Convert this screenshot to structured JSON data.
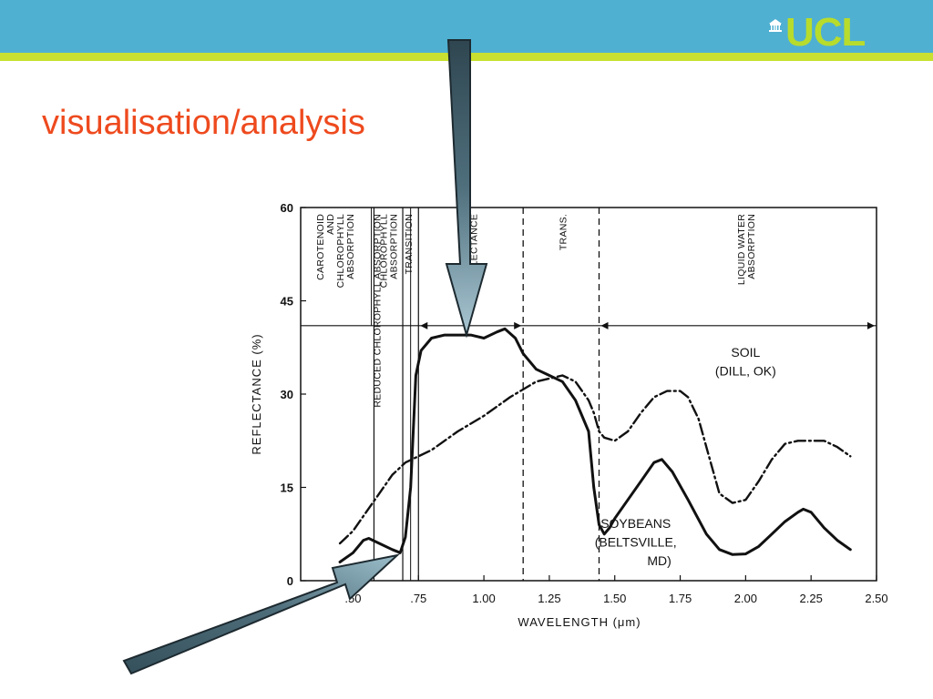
{
  "header": {
    "logo_text": "UCL",
    "colors": {
      "bar": "#4fb0d2",
      "accent_line": "#c9e030",
      "logo": "#b8dc2c",
      "title": "#ee4a1e"
    }
  },
  "slide": {
    "title": "visualisation/analysis"
  },
  "chart_data": {
    "type": "line",
    "xlabel": "WAVELENGTH (μm)",
    "ylabel": "REFLECTANCE (%)",
    "xlim": [
      0.3,
      2.5
    ],
    "ylim": [
      0,
      60
    ],
    "x_ticks": [
      ".50",
      ".75",
      "1.00",
      "1.25",
      "1.50",
      "1.75",
      "2.00",
      "2.25",
      "2.50"
    ],
    "x_tick_values": [
      0.5,
      0.75,
      1.0,
      1.25,
      1.5,
      1.75,
      2.0,
      2.25,
      2.5
    ],
    "y_ticks": [
      "0",
      "15",
      "30",
      "45",
      "60"
    ],
    "y_tick_values": [
      0,
      15,
      30,
      45,
      60
    ],
    "grid": false,
    "regions": [
      {
        "label": "CAROTENOID AND CHLOROPHYLL ABSORPTION",
        "from": 0.3,
        "to": 0.58
      },
      {
        "label": "REDUCED CHLOROPHYLL ABSORPTION",
        "from": 0.58,
        "to": 0.58
      },
      {
        "label": "CHLOROPHYLL ABSORPTION",
        "from": 0.58,
        "to": 0.69
      },
      {
        "label": "TRANSITION",
        "from": 0.69,
        "to": 0.75
      },
      {
        "label": "REFLECTANCE",
        "from": 0.75,
        "to": 1.15
      },
      {
        "label": "TRANS.",
        "from": 1.15,
        "to": 1.44
      },
      {
        "label": "LIQUID WATER ABSORPTION",
        "from": 1.44,
        "to": 2.5
      }
    ],
    "series": [
      {
        "name": "SOYBEANS (BELTSVILLE, MD)",
        "style": "solid",
        "x": [
          0.45,
          0.5,
          0.54,
          0.56,
          0.6,
          0.65,
          0.68,
          0.7,
          0.72,
          0.74,
          0.76,
          0.8,
          0.85,
          0.9,
          0.95,
          1.0,
          1.05,
          1.08,
          1.12,
          1.15,
          1.2,
          1.25,
          1.3,
          1.35,
          1.4,
          1.42,
          1.44,
          1.46,
          1.48,
          1.5,
          1.55,
          1.6,
          1.65,
          1.68,
          1.72,
          1.78,
          1.85,
          1.9,
          1.95,
          2.0,
          2.05,
          2.1,
          2.15,
          2.2,
          2.22,
          2.25,
          2.3,
          2.35,
          2.4
        ],
        "y": [
          3,
          4.5,
          6.5,
          6.8,
          6,
          5,
          4.5,
          7,
          15,
          33,
          37,
          39,
          39.5,
          39.5,
          39.5,
          39,
          40,
          40.5,
          39,
          36.5,
          34,
          33,
          32,
          29,
          24,
          15,
          9,
          7.5,
          8.5,
          10,
          13,
          16,
          19,
          19.5,
          17.5,
          13,
          7.5,
          5,
          4.2,
          4.3,
          5.5,
          7.5,
          9.5,
          11,
          11.5,
          11,
          8.5,
          6.5,
          5
        ]
      },
      {
        "name": "SOIL (DILL, OK)",
        "style": "dashdot",
        "x": [
          0.45,
          0.5,
          0.55,
          0.6,
          0.65,
          0.7,
          0.75,
          0.8,
          0.9,
          1.0,
          1.1,
          1.2,
          1.3,
          1.35,
          1.4,
          1.42,
          1.44,
          1.46,
          1.5,
          1.55,
          1.6,
          1.65,
          1.7,
          1.75,
          1.78,
          1.82,
          1.86,
          1.9,
          1.95,
          2.0,
          2.05,
          2.1,
          2.15,
          2.2,
          2.25,
          2.3,
          2.35,
          2.4
        ],
        "y": [
          6,
          8,
          11,
          14,
          17,
          19,
          20,
          21,
          24,
          26.5,
          29.5,
          32,
          33,
          32,
          29,
          27,
          24,
          23,
          22.5,
          24,
          27,
          29.5,
          30.5,
          30.5,
          29.5,
          26,
          20,
          14,
          12.5,
          13,
          16,
          19.5,
          22,
          22.5,
          22.5,
          22.5,
          21.5,
          20
        ]
      }
    ],
    "annotations": [
      {
        "text": "SOIL",
        "x": 2.0,
        "y": 36
      },
      {
        "text": "(DILL, OK)",
        "x": 2.0,
        "y": 33
      },
      {
        "text": "SOYBEANS",
        "x": 1.58,
        "y": 8.5
      },
      {
        "text": "(BELTSVILLE,",
        "x": 1.58,
        "y": 5.5
      },
      {
        "text": "MD)",
        "x": 1.67,
        "y": 2.5
      }
    ]
  }
}
